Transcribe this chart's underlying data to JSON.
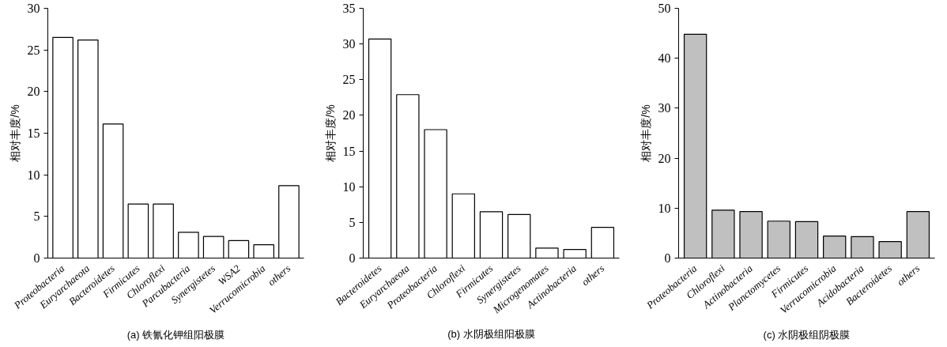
{
  "chart_data": [
    {
      "type": "bar",
      "title": "(a) 铁氰化钾组阳极膜",
      "ylabel": "相对丰度/%",
      "categories": [
        "Proteobacteria",
        "Euryarchaeota",
        "Bacteroidetes",
        "Firmicutes",
        "Chloroflexi",
        "Parcubacteria",
        "Synergistetes",
        "WSA2",
        "Verrucomicrobia",
        "others"
      ],
      "values": [
        26.5,
        26.2,
        16.1,
        6.5,
        6.5,
        3.1,
        2.6,
        2.1,
        1.6,
        8.7
      ],
      "color": "#ffffff",
      "ylim": [
        0,
        30
      ],
      "yticks": [
        0,
        5,
        10,
        15,
        20,
        25,
        30
      ],
      "grid": false
    },
    {
      "type": "bar",
      "title": "(b) 水阴极组阳极膜",
      "ylabel": "相对丰度/%",
      "categories": [
        "Bacteroidetes",
        "Euryarchaeota",
        "Proteobacteria",
        "Chloroflexi",
        "Firmicutes",
        "Synergistetes",
        "Microgenomates",
        "Actinobacteria",
        "others"
      ],
      "values": [
        30.7,
        22.9,
        18.0,
        9.0,
        6.5,
        6.1,
        1.4,
        1.2,
        4.3
      ],
      "color": "#ffffff",
      "ylim": [
        0,
        35
      ],
      "yticks": [
        0,
        5,
        10,
        15,
        20,
        25,
        30,
        35
      ],
      "grid": false
    },
    {
      "type": "bar",
      "title": "(c) 水阴极组阴极膜",
      "ylabel": "相对丰度/%",
      "categories": [
        "Proteobacteria",
        "Chloroflexi",
        "Actinobacteria",
        "Planctomycetes",
        "Firmicutes",
        "Verrucomicrobia",
        "Acidobacteria",
        "Bacteroidetes",
        "others"
      ],
      "values": [
        44.8,
        9.6,
        9.3,
        7.4,
        7.3,
        4.4,
        4.3,
        3.3,
        9.3
      ],
      "color": "#c0c0c0",
      "ylim": [
        0,
        50
      ],
      "yticks": [
        0,
        10,
        20,
        30,
        40,
        50
      ],
      "grid": false
    }
  ]
}
